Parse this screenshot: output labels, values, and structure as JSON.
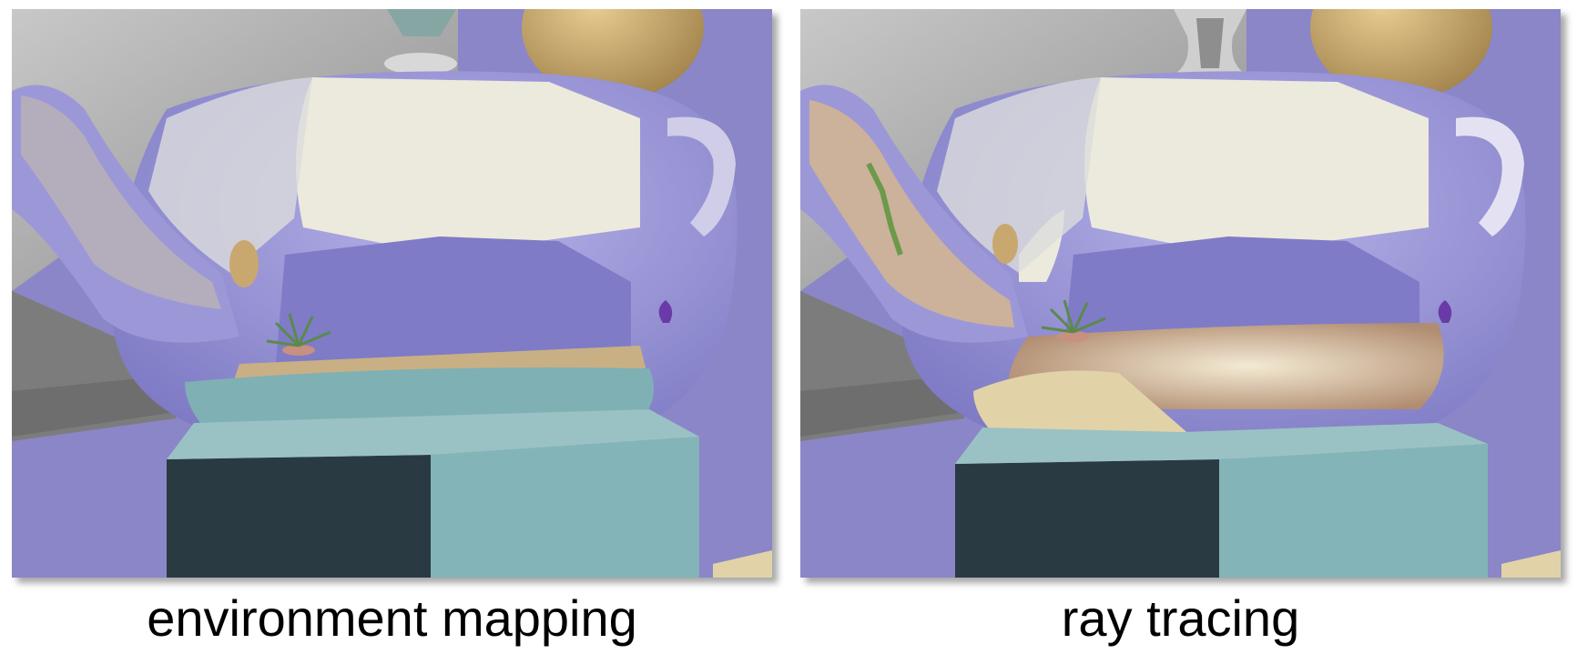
{
  "panels": [
    {
      "caption": "environment mapping",
      "colors": {
        "wall": "#8a86c8",
        "teapot_body": "#9c98d8",
        "teapot_highlight": "#eceadd",
        "reflection_bottom": "#7fb0b4",
        "pedestal_top": "#83b4b8",
        "pedestal_front_dark": "#2a3a42",
        "lid_ball": "#c9a870",
        "gray_wall": "#a4a4a4"
      }
    },
    {
      "caption": "ray tracing",
      "colors": {
        "wall": "#8a86c8",
        "teapot_body": "#9c98d8",
        "teapot_highlight": "#eceadd",
        "reflection_bottom": "#e2d2a8",
        "pedestal_top": "#83b4b8",
        "pedestal_front_dark": "#2a3a42",
        "lid_ball": "#c9a870",
        "gray_wall": "#a4a4a4"
      }
    }
  ]
}
